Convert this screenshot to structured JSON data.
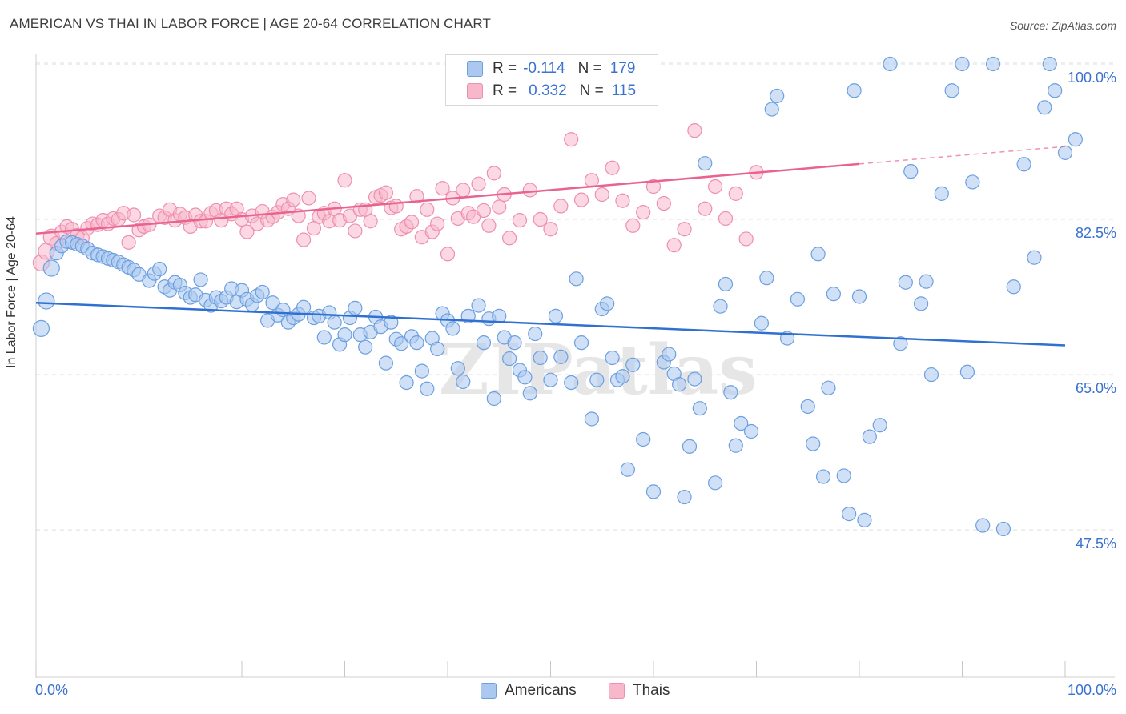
{
  "title": "AMERICAN VS THAI IN LABOR FORCE | AGE 20-64 CORRELATION CHART",
  "source": "Source: ZipAtlas.com",
  "legend": {
    "r_label": "R =",
    "n_label": "N =",
    "americans": {
      "r": "-0.114",
      "n": "179"
    },
    "thais": {
      "r": "0.332",
      "n": "115"
    }
  },
  "bottom_legend": {
    "americans": "Americans",
    "thais": "Thais"
  },
  "watermark": "ZIPatlas",
  "colors": {
    "americans_fill": "#aac8f0",
    "americans_stroke": "#6d9fdf",
    "americans_line": "#2f70d0",
    "thais_fill": "#f7b8cc",
    "thais_stroke": "#ee8fae",
    "thais_line": "#e8648f",
    "tick_label": "#3a72d0",
    "grid": "#dddddd"
  },
  "chart_data": {
    "type": "scatter",
    "title": "AMERICAN VS THAI IN LABOR FORCE | AGE 20-64 CORRELATION CHART",
    "xlabel": "",
    "ylabel": "In Labor Force | Age 20-64",
    "xlim": [
      0,
      100
    ],
    "ylim": [
      31,
      100
    ],
    "x_tick_labels": [
      "0.0%",
      "100.0%"
    ],
    "y_ticks": [
      47.5,
      65.0,
      82.5,
      100.0
    ],
    "y_tick_labels": [
      "47.5%",
      "65.0%",
      "82.5%",
      "100.0%"
    ],
    "grid": "horizontal dashed",
    "legend_placement": "top-center",
    "series": [
      {
        "name": "Americans",
        "trend": {
          "x": [
            0,
            100
          ],
          "y": [
            73.1,
            68.3
          ]
        },
        "points": [
          [
            0.5,
            70.2
          ],
          [
            1,
            73.3
          ],
          [
            1.5,
            77
          ],
          [
            2,
            78.7
          ],
          [
            2.5,
            79.5
          ],
          [
            3,
            80
          ],
          [
            3.5,
            79.9
          ],
          [
            4,
            79.7
          ],
          [
            4.5,
            79.5
          ],
          [
            5,
            79.2
          ],
          [
            5.5,
            78.7
          ],
          [
            6,
            78.5
          ],
          [
            6.5,
            78.3
          ],
          [
            7,
            78.1
          ],
          [
            7.5,
            77.9
          ],
          [
            8,
            77.7
          ],
          [
            8.5,
            77.4
          ],
          [
            9,
            77.1
          ],
          [
            9.5,
            76.8
          ],
          [
            10,
            76.3
          ],
          [
            11,
            75.6
          ],
          [
            11.5,
            76.4
          ],
          [
            12,
            76.9
          ],
          [
            12.5,
            74.9
          ],
          [
            13,
            74.5
          ],
          [
            13.5,
            75.4
          ],
          [
            14,
            75.1
          ],
          [
            14.5,
            74.2
          ],
          [
            15,
            73.7
          ],
          [
            15.5,
            74
          ],
          [
            16,
            75.7
          ],
          [
            16.5,
            73.4
          ],
          [
            17,
            72.8
          ],
          [
            17.5,
            73.7
          ],
          [
            18,
            73.3
          ],
          [
            18.5,
            73.7
          ],
          [
            19,
            74.7
          ],
          [
            19.5,
            73.2
          ],
          [
            20,
            74.5
          ],
          [
            20.5,
            73.5
          ],
          [
            21,
            72.9
          ],
          [
            21.5,
            73.9
          ],
          [
            22,
            74.3
          ],
          [
            22.5,
            71.1
          ],
          [
            23,
            73.1
          ],
          [
            23.5,
            71.7
          ],
          [
            24,
            72.3
          ],
          [
            24.5,
            70.9
          ],
          [
            25,
            71.4
          ],
          [
            25.5,
            71.8
          ],
          [
            26,
            72.6
          ],
          [
            27,
            71.4
          ],
          [
            27.5,
            71.6
          ],
          [
            28,
            69.2
          ],
          [
            28.5,
            72
          ],
          [
            29,
            70.9
          ],
          [
            29.5,
            68.4
          ],
          [
            30,
            69.5
          ],
          [
            30.5,
            71.4
          ],
          [
            31,
            72.5
          ],
          [
            31.5,
            69.5
          ],
          [
            32,
            68.1
          ],
          [
            32.5,
            69.8
          ],
          [
            33,
            71.5
          ],
          [
            33.5,
            70.4
          ],
          [
            34,
            66.3
          ],
          [
            34.5,
            70.9
          ],
          [
            35,
            69
          ],
          [
            35.5,
            68.5
          ],
          [
            36,
            64.1
          ],
          [
            36.5,
            69.3
          ],
          [
            37,
            68.6
          ],
          [
            37.5,
            65.4
          ],
          [
            38,
            63.4
          ],
          [
            38.5,
            69.1
          ],
          [
            39,
            67.9
          ],
          [
            39.5,
            71.9
          ],
          [
            40,
            71.1
          ],
          [
            40.5,
            70.2
          ],
          [
            41,
            65.7
          ],
          [
            41.5,
            64.2
          ],
          [
            42,
            71.6
          ],
          [
            43,
            72.8
          ],
          [
            43.5,
            68.6
          ],
          [
            44,
            71.3
          ],
          [
            44.5,
            62.3
          ],
          [
            45,
            71.6
          ],
          [
            45.5,
            69.2
          ],
          [
            46,
            66.8
          ],
          [
            46.5,
            68.6
          ],
          [
            47,
            65.5
          ],
          [
            47.5,
            64.7
          ],
          [
            48,
            62.9
          ],
          [
            48.5,
            69.6
          ],
          [
            49,
            66.9
          ],
          [
            50,
            64.4
          ],
          [
            50.5,
            71.6
          ],
          [
            51,
            67
          ],
          [
            52,
            64.1
          ],
          [
            52.5,
            75.8
          ],
          [
            53,
            68.6
          ],
          [
            54,
            60
          ],
          [
            54.5,
            64.4
          ],
          [
            55,
            72.4
          ],
          [
            55.5,
            73
          ],
          [
            56,
            66.9
          ],
          [
            56.5,
            64.4
          ],
          [
            57,
            64.8
          ],
          [
            57.5,
            54.3
          ],
          [
            58,
            66.1
          ],
          [
            59,
            57.7
          ],
          [
            60,
            51.8
          ],
          [
            61,
            66.4
          ],
          [
            61.5,
            67.3
          ],
          [
            62,
            65.1
          ],
          [
            62.5,
            63.9
          ],
          [
            63,
            51.2
          ],
          [
            63.5,
            56.9
          ],
          [
            64,
            64.5
          ],
          [
            64.5,
            61.2
          ],
          [
            65,
            88.8
          ],
          [
            66,
            52.8
          ],
          [
            66.5,
            72.7
          ],
          [
            67,
            75.2
          ],
          [
            67.5,
            63
          ],
          [
            68,
            57
          ],
          [
            68.5,
            59.5
          ],
          [
            69.5,
            58.6
          ],
          [
            70.5,
            70.8
          ],
          [
            71,
            75.9
          ],
          [
            71.5,
            94.9
          ],
          [
            72,
            96.4
          ],
          [
            73,
            69.1
          ],
          [
            74,
            73.5
          ],
          [
            75,
            61.4
          ],
          [
            75.5,
            57.2
          ],
          [
            76,
            78.6
          ],
          [
            76.5,
            53.5
          ],
          [
            77,
            63.5
          ],
          [
            77.5,
            74.1
          ],
          [
            78.5,
            53.6
          ],
          [
            79,
            49.3
          ],
          [
            79.5,
            97
          ],
          [
            80,
            73.8
          ],
          [
            80.5,
            48.6
          ],
          [
            81,
            58
          ],
          [
            82,
            59.3
          ],
          [
            83,
            100
          ],
          [
            84,
            68.5
          ],
          [
            84.5,
            75.4
          ],
          [
            85,
            87.9
          ],
          [
            86,
            73
          ],
          [
            86.5,
            75.5
          ],
          [
            87,
            65
          ],
          [
            88,
            85.4
          ],
          [
            89,
            97
          ],
          [
            90,
            100
          ],
          [
            90.5,
            65.3
          ],
          [
            91,
            86.7
          ],
          [
            92,
            48
          ],
          [
            93,
            100
          ],
          [
            94,
            47.6
          ],
          [
            95,
            74.9
          ],
          [
            96,
            88.7
          ],
          [
            97,
            78.2
          ],
          [
            98,
            95.1
          ],
          [
            98.5,
            100
          ],
          [
            99,
            97
          ],
          [
            100,
            90
          ],
          [
            101,
            91.5
          ]
        ]
      },
      {
        "name": "Thais",
        "trend": {
          "x": [
            0,
            100
          ],
          "y": [
            80.9,
            90.7
          ]
        },
        "points": [
          [
            0.5,
            77.6
          ],
          [
            1,
            78.9
          ],
          [
            1.5,
            80.5
          ],
          [
            2,
            79.8
          ],
          [
            2.5,
            81.1
          ],
          [
            3,
            81.7
          ],
          [
            3.5,
            81.4
          ],
          [
            4,
            80.7
          ],
          [
            4.5,
            80.4
          ],
          [
            5,
            81.5
          ],
          [
            5.5,
            82
          ],
          [
            6,
            81.9
          ],
          [
            6.5,
            82.4
          ],
          [
            7,
            82
          ],
          [
            7.5,
            82.6
          ],
          [
            8,
            82.5
          ],
          [
            8.5,
            83.2
          ],
          [
            9,
            79.9
          ],
          [
            9.5,
            83
          ],
          [
            10,
            81.3
          ],
          [
            10.5,
            81.7
          ],
          [
            11,
            81.9
          ],
          [
            12,
            82.9
          ],
          [
            12.5,
            82.7
          ],
          [
            13,
            83.6
          ],
          [
            13.5,
            82.4
          ],
          [
            14,
            83.1
          ],
          [
            14.5,
            82.7
          ],
          [
            15,
            81.7
          ],
          [
            15.5,
            83
          ],
          [
            16,
            82.3
          ],
          [
            16.5,
            82.3
          ],
          [
            17,
            83.2
          ],
          [
            17.5,
            83.5
          ],
          [
            18,
            82.4
          ],
          [
            18.5,
            83.7
          ],
          [
            19,
            83.1
          ],
          [
            19.5,
            83.7
          ],
          [
            20,
            82.5
          ],
          [
            20.5,
            81.1
          ],
          [
            21,
            82.9
          ],
          [
            21.5,
            82
          ],
          [
            22,
            83.4
          ],
          [
            22.5,
            82.4
          ],
          [
            23,
            82.8
          ],
          [
            23.5,
            83.3
          ],
          [
            24,
            84.2
          ],
          [
            24.5,
            83.7
          ],
          [
            25,
            84.7
          ],
          [
            25.5,
            82.9
          ],
          [
            26,
            80.2
          ],
          [
            26.5,
            84.9
          ],
          [
            27,
            81.5
          ],
          [
            27.5,
            82.8
          ],
          [
            28,
            83.2
          ],
          [
            28.5,
            82.3
          ],
          [
            29,
            83.7
          ],
          [
            29.5,
            82.4
          ],
          [
            30,
            86.9
          ],
          [
            30.5,
            82.9
          ],
          [
            31,
            81.2
          ],
          [
            31.5,
            83.6
          ],
          [
            32,
            83.6
          ],
          [
            32.5,
            82.3
          ],
          [
            33,
            85
          ],
          [
            33.5,
            85.2
          ],
          [
            34,
            85.5
          ],
          [
            34.5,
            83.8
          ],
          [
            35,
            84
          ],
          [
            35.5,
            81.4
          ],
          [
            36,
            81.7
          ],
          [
            36.5,
            82.2
          ],
          [
            37,
            85.1
          ],
          [
            37.5,
            80.5
          ],
          [
            38,
            83.6
          ],
          [
            38.5,
            81.1
          ],
          [
            39,
            82
          ],
          [
            39.5,
            86
          ],
          [
            40,
            78.6
          ],
          [
            40.5,
            84.9
          ],
          [
            41,
            82.6
          ],
          [
            41.5,
            85.8
          ],
          [
            42,
            83.2
          ],
          [
            42.5,
            82.8
          ],
          [
            43,
            86.5
          ],
          [
            43.5,
            83.5
          ],
          [
            44,
            81.8
          ],
          [
            44.5,
            87.7
          ],
          [
            45,
            83.9
          ],
          [
            45.5,
            85.3
          ],
          [
            46,
            80.4
          ],
          [
            47,
            82.4
          ],
          [
            48,
            85.8
          ],
          [
            49,
            82.5
          ],
          [
            50,
            81.4
          ],
          [
            51,
            84
          ],
          [
            52,
            91.5
          ],
          [
            53,
            84.7
          ],
          [
            54,
            86.9
          ],
          [
            55,
            85.3
          ],
          [
            56,
            88.3
          ],
          [
            57,
            84.6
          ],
          [
            58,
            81.8
          ],
          [
            59,
            83.3
          ],
          [
            60,
            86.2
          ],
          [
            61,
            84.3
          ],
          [
            62,
            79.6
          ],
          [
            63,
            81.4
          ],
          [
            64,
            92.5
          ],
          [
            65,
            83.7
          ],
          [
            66,
            86.2
          ],
          [
            67,
            82.6
          ],
          [
            68,
            85.4
          ],
          [
            69,
            80.3
          ],
          [
            70,
            87.8
          ]
        ]
      }
    ]
  }
}
